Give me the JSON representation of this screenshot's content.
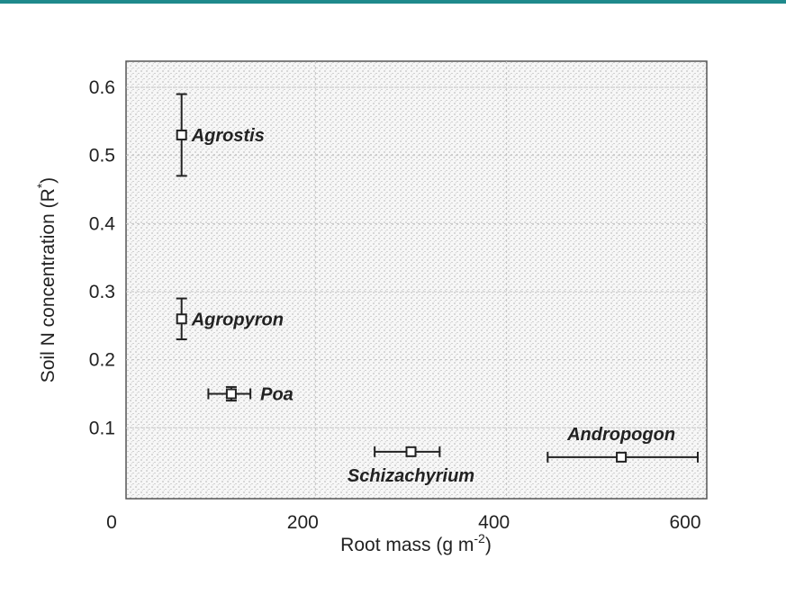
{
  "chart_data": {
    "type": "scatter",
    "xlabel": "Root mass (g m",
    "xlabel_exp": "-2",
    "xlabel_end": ")",
    "ylabel": "Soil N concentration (R",
    "ylabel_exp": "*",
    "ylabel_end": ")",
    "xlim": [
      0,
      600
    ],
    "ylim": [
      0,
      0.63
    ],
    "x_ticks": [
      {
        "value": 0,
        "label": "0"
      },
      {
        "value": 200,
        "label": "200"
      },
      {
        "value": 400,
        "label": "400"
      },
      {
        "value": 600,
        "label": "600"
      }
    ],
    "y_ticks": [
      {
        "value": 0.1,
        "label": "0.1"
      },
      {
        "value": 0.2,
        "label": "0.2"
      },
      {
        "value": 0.3,
        "label": "0.3"
      },
      {
        "value": 0.4,
        "label": "0.4"
      },
      {
        "value": 0.5,
        "label": "0.5"
      },
      {
        "value": 0.6,
        "label": "0.6"
      }
    ],
    "background": "stippled",
    "points": [
      {
        "label": "Agrostis",
        "x": 60,
        "y": 0.53,
        "y_err": [
          0.47,
          0.59
        ],
        "label_pos": "right"
      },
      {
        "label": "Agropyron",
        "x": 60,
        "y": 0.26,
        "y_err": [
          0.23,
          0.29
        ],
        "label_pos": "right"
      },
      {
        "label": "Poa",
        "x": 112,
        "y": 0.15,
        "x_err": [
          88,
          132
        ],
        "y_err": [
          0.14,
          0.16
        ],
        "label_pos": "right"
      },
      {
        "label": "Schizachyrium",
        "x": 300,
        "y": 0.065,
        "x_err": [
          262,
          330
        ],
        "label_pos": "below"
      },
      {
        "label": "Andropogon",
        "x": 520,
        "y": 0.057,
        "x_err": [
          443,
          600
        ],
        "label_pos": "above"
      }
    ]
  }
}
